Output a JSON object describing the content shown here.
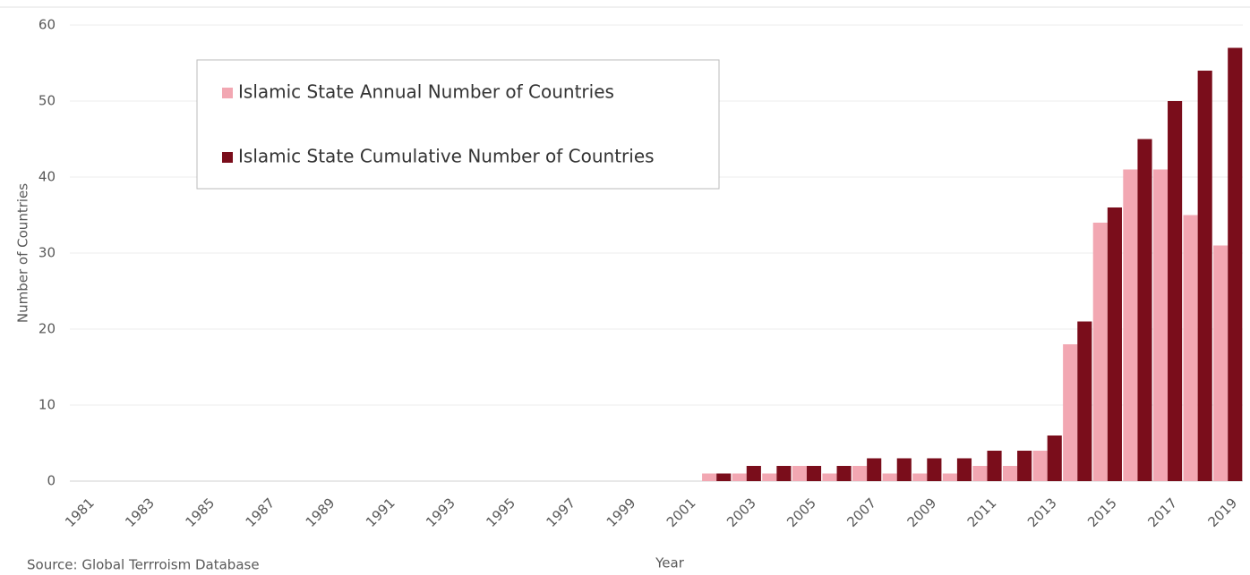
{
  "chart_data": {
    "type": "bar",
    "y_label": "Number of Countries",
    "x_label": "Year",
    "source": "Source: Global Terrroism Database",
    "categories": [
      "1981",
      null,
      "1983",
      null,
      "1985",
      null,
      "1987",
      null,
      "1989",
      null,
      "1991",
      null,
      "1993",
      null,
      "1995",
      null,
      "1997",
      null,
      "1999",
      null,
      "2001",
      null,
      "2003",
      null,
      "2005",
      null,
      "2007",
      null,
      "2009",
      null,
      "2011",
      null,
      "2013",
      null,
      "2015",
      null,
      "2017",
      null,
      "2019"
    ],
    "series": [
      {
        "name": "Islamic State Annual Number of Countries",
        "color": "#f2a7b2",
        "values": [
          0,
          0,
          0,
          0,
          0,
          0,
          0,
          0,
          0,
          0,
          0,
          0,
          0,
          0,
          0,
          0,
          0,
          0,
          0,
          0,
          0,
          1,
          1,
          1,
          2,
          1,
          2,
          1,
          1,
          1,
          2,
          2,
          4,
          18,
          34,
          41,
          41,
          35,
          31
        ]
      },
      {
        "name": "Islamic State Cumulative Number of Countries",
        "color": "#7a0d1b",
        "values": [
          0,
          0,
          0,
          0,
          0,
          0,
          0,
          0,
          0,
          0,
          0,
          0,
          0,
          0,
          0,
          0,
          0,
          0,
          0,
          0,
          0,
          1,
          2,
          2,
          2,
          2,
          3,
          3,
          3,
          3,
          4,
          4,
          6,
          21,
          36,
          45,
          50,
          54,
          57
        ]
      }
    ],
    "ylim": [
      0,
      60
    ],
    "yticks": [
      0,
      10,
      20,
      30,
      40,
      50,
      60
    ],
    "grid": true,
    "legend": "upper left"
  }
}
